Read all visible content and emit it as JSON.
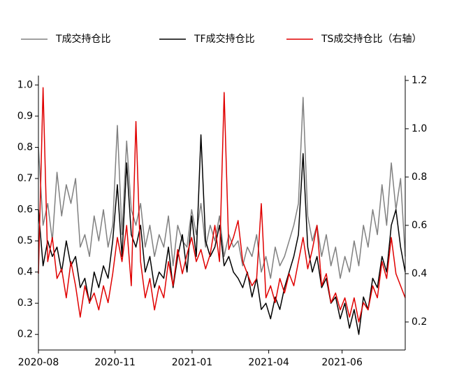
{
  "chart_data": {
    "type": "line",
    "legend": "top",
    "x": [
      0,
      1,
      2,
      3,
      4,
      5,
      6,
      7,
      8,
      9,
      10,
      11,
      12,
      13,
      14,
      15,
      16,
      17,
      18,
      19,
      20,
      21,
      22,
      23,
      24,
      25,
      26,
      27,
      28,
      29,
      30,
      31,
      32,
      33,
      34,
      35,
      36,
      37,
      38,
      39,
      40,
      41,
      42,
      43,
      44,
      45,
      46,
      47,
      48,
      49,
      50,
      51,
      52,
      53,
      54,
      55,
      56,
      57,
      58,
      59,
      60,
      61,
      62,
      63,
      64,
      65,
      66,
      67,
      68,
      69,
      70,
      71,
      72,
      73,
      74,
      75,
      76,
      77,
      78,
      79
    ],
    "xlim": [
      0,
      79
    ],
    "xticks": [
      {
        "value": 0,
        "label": "2020-08"
      },
      {
        "value": 16.5,
        "label": "2020-11"
      },
      {
        "value": 33.1,
        "label": "2021-01"
      },
      {
        "value": 49.6,
        "label": "2021-04"
      },
      {
        "value": 65.4,
        "label": "2021-06"
      }
    ],
    "ylim": [
      0.15,
      1.03
    ],
    "yticks": [
      0.2,
      0.3,
      0.4,
      0.5,
      0.6,
      0.7,
      0.8,
      0.9,
      {
        "value": 1,
        "label": "1.0"
      }
    ],
    "y2lim": [
      0.084,
      1.22
    ],
    "y2ticks": [
      0.2,
      0.4,
      0.6,
      0.8,
      {
        "value": 1,
        "label": "1.0"
      },
      1.2
    ],
    "series": [
      {
        "name": "T成交持仓比",
        "color": "#808080",
        "values": [
          0.8,
          0.55,
          0.62,
          0.5,
          0.72,
          0.58,
          0.68,
          0.62,
          0.7,
          0.48,
          0.52,
          0.45,
          0.58,
          0.5,
          0.6,
          0.48,
          0.55,
          0.87,
          0.52,
          0.82,
          0.6,
          0.55,
          0.62,
          0.48,
          0.55,
          0.45,
          0.52,
          0.48,
          0.58,
          0.42,
          0.55,
          0.5,
          0.48,
          0.6,
          0.52,
          0.62,
          0.48,
          0.55,
          0.5,
          0.58,
          0.45,
          0.52,
          0.48,
          0.5,
          0.42,
          0.48,
          0.45,
          0.52,
          0.4,
          0.45,
          0.38,
          0.48,
          0.42,
          0.45,
          0.5,
          0.55,
          0.62,
          0.96,
          0.58,
          0.5,
          0.55,
          0.45,
          0.52,
          0.42,
          0.48,
          0.38,
          0.45,
          0.4,
          0.5,
          0.42,
          0.55,
          0.48,
          0.6,
          0.52,
          0.68,
          0.55,
          0.75,
          0.6,
          0.7,
          0.45
        ]
      },
      {
        "name": "TF成交持仓比",
        "color": "#000000",
        "values": [
          0.6,
          0.42,
          0.5,
          0.45,
          0.48,
          0.4,
          0.5,
          0.42,
          0.45,
          0.35,
          0.38,
          0.3,
          0.4,
          0.35,
          0.42,
          0.38,
          0.5,
          0.68,
          0.45,
          0.75,
          0.52,
          0.48,
          0.55,
          0.4,
          0.45,
          0.35,
          0.4,
          0.38,
          0.48,
          0.35,
          0.45,
          0.52,
          0.4,
          0.58,
          0.45,
          0.84,
          0.5,
          0.45,
          0.48,
          0.55,
          0.42,
          0.45,
          0.4,
          0.38,
          0.35,
          0.4,
          0.32,
          0.38,
          0.28,
          0.3,
          0.25,
          0.32,
          0.28,
          0.35,
          0.4,
          0.45,
          0.52,
          0.78,
          0.48,
          0.4,
          0.45,
          0.35,
          0.38,
          0.3,
          0.32,
          0.25,
          0.3,
          0.22,
          0.28,
          0.2,
          0.32,
          0.28,
          0.38,
          0.35,
          0.45,
          0.4,
          0.55,
          0.6,
          0.48,
          0.4
        ]
      },
      {
        "name": "TS成交持仓比（右轴）",
        "color": "#e00000",
        "axis": "y2",
        "values": [
          0.4,
          1.17,
          0.45,
          0.55,
          0.38,
          0.42,
          0.3,
          0.45,
          0.35,
          0.22,
          0.35,
          0.28,
          0.32,
          0.25,
          0.35,
          0.28,
          0.4,
          0.55,
          0.45,
          0.6,
          0.35,
          1.03,
          0.45,
          0.3,
          0.38,
          0.25,
          0.35,
          0.3,
          0.45,
          0.35,
          0.5,
          0.4,
          0.48,
          0.55,
          0.45,
          0.5,
          0.42,
          0.48,
          0.6,
          0.45,
          1.15,
          0.5,
          0.55,
          0.62,
          0.45,
          0.4,
          0.35,
          0.38,
          0.69,
          0.3,
          0.35,
          0.28,
          0.38,
          0.32,
          0.4,
          0.35,
          0.45,
          0.55,
          0.42,
          0.5,
          0.6,
          0.35,
          0.4,
          0.28,
          0.32,
          0.25,
          0.3,
          0.22,
          0.3,
          0.2,
          0.28,
          0.25,
          0.35,
          0.3,
          0.45,
          0.38,
          0.55,
          0.4,
          0.35,
          0.3
        ]
      }
    ]
  }
}
